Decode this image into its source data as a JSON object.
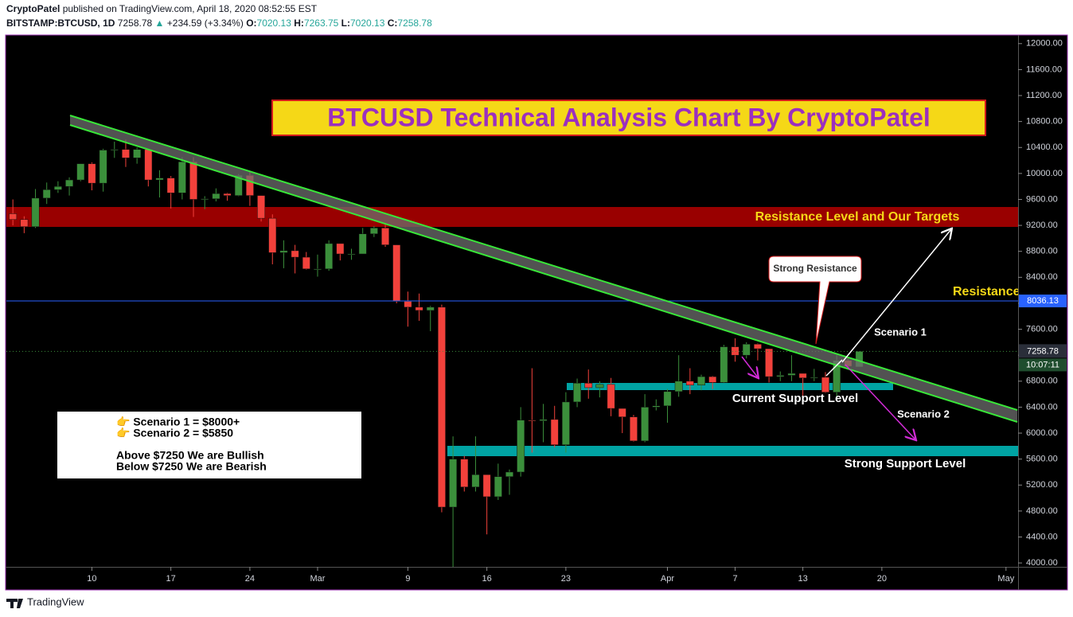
{
  "header": {
    "author": "CryptoPatel",
    "published": "published on TradingView.com, April 18, 2020 08:52:55 EST",
    "symbol": "BITSTAMP:BTCUSD, 1D",
    "last": "7258.78",
    "arrow": "▲",
    "change": "+234.59 (+3.34%)",
    "o_label": "O:",
    "o": "7020.13",
    "h_label": "H:",
    "h": "7263.75",
    "l_label": "L:",
    "l": "7020.13",
    "c_label": "C:",
    "c": "7258.78"
  },
  "footer": {
    "brand": "TradingView"
  },
  "chart_data": {
    "type": "candlestick",
    "x": [
      "2020-02-03",
      "2020-02-04",
      "2020-02-05",
      "2020-02-06",
      "2020-02-07",
      "2020-02-08",
      "2020-02-09",
      "2020-02-10",
      "2020-02-11",
      "2020-02-12",
      "2020-02-13",
      "2020-02-14",
      "2020-02-15",
      "2020-02-16",
      "2020-02-17",
      "2020-02-18",
      "2020-02-19",
      "2020-02-20",
      "2020-02-21",
      "2020-02-22",
      "2020-02-23",
      "2020-02-24",
      "2020-02-25",
      "2020-02-26",
      "2020-02-27",
      "2020-02-28",
      "2020-02-29",
      "2020-03-01",
      "2020-03-02",
      "2020-03-03",
      "2020-03-04",
      "2020-03-05",
      "2020-03-06",
      "2020-03-07",
      "2020-03-08",
      "2020-03-09",
      "2020-03-10",
      "2020-03-11",
      "2020-03-12",
      "2020-03-13",
      "2020-03-14",
      "2020-03-15",
      "2020-03-16",
      "2020-03-17",
      "2020-03-18",
      "2020-03-19",
      "2020-03-20",
      "2020-03-21",
      "2020-03-22",
      "2020-03-23",
      "2020-03-24",
      "2020-03-25",
      "2020-03-26",
      "2020-03-27",
      "2020-03-28",
      "2020-03-29",
      "2020-03-30",
      "2020-03-31",
      "2020-04-01",
      "2020-04-02",
      "2020-04-03",
      "2020-04-04",
      "2020-04-05",
      "2020-04-06",
      "2020-04-07",
      "2020-04-08",
      "2020-04-09",
      "2020-04-10",
      "2020-04-11",
      "2020-04-12",
      "2020-04-13",
      "2020-04-14",
      "2020-04-15",
      "2020-04-16",
      "2020-04-17",
      "2020-04-18"
    ],
    "open": [
      9380,
      9290,
      9180,
      9620,
      9750,
      9800,
      9900,
      10150,
      9850,
      10360,
      10370,
      10240,
      10370,
      9900,
      9930,
      9700,
      10180,
      9600,
      9610,
      9690,
      9660,
      9970,
      9660,
      9310,
      8780,
      8810,
      8710,
      8530,
      8530,
      8920,
      8760,
      8760,
      9070,
      9160,
      8900,
      8030,
      7940,
      7890,
      7940,
      4860,
      5600,
      5170,
      5360,
      5020,
      5330,
      5400,
      6200,
      6190,
      6210,
      5820,
      6480,
      6770,
      6700,
      6750,
      6380,
      6250,
      5880,
      6400,
      6420,
      6640,
      6800,
      6740,
      6870,
      6780,
      7330,
      7200,
      7370,
      7300,
      6870,
      6890,
      6920,
      6850,
      6860,
      6630,
      7120,
      7020.13
    ],
    "high": [
      9600,
      9340,
      9760,
      9860,
      9880,
      9940,
      10150,
      10170,
      10380,
      10490,
      10520,
      10400,
      10380,
      10050,
      9960,
      10250,
      10250,
      9650,
      9770,
      9700,
      9990,
      10030,
      9660,
      9370,
      8970,
      8900,
      8790,
      8750,
      8970,
      8920,
      8840,
      9160,
      9190,
      9210,
      8900,
      8180,
      8150,
      7960,
      7980,
      5950,
      5650,
      5950,
      5360,
      5530,
      5440,
      6400,
      7000,
      6450,
      6420,
      6630,
      6840,
      6980,
      6800,
      6850,
      6380,
      6280,
      6600,
      6520,
      6680,
      7200,
      7000,
      6900,
      6880,
      7360,
      7460,
      7400,
      7380,
      7300,
      6950,
      7200,
      6920,
      6990,
      6940,
      7200,
      7150,
      7263.75
    ],
    "low": [
      9200,
      9080,
      9160,
      9530,
      9700,
      9660,
      9880,
      9740,
      9720,
      10240,
      10100,
      10150,
      9800,
      9630,
      9460,
      9600,
      9330,
      9450,
      9570,
      9580,
      9650,
      9500,
      9260,
      8600,
      8540,
      8460,
      8520,
      8410,
      8500,
      8660,
      8670,
      8760,
      9020,
      8870,
      8000,
      7640,
      7730,
      7570,
      4780,
      3860,
      5100,
      5100,
      4440,
      4970,
      5050,
      5330,
      5700,
      5860,
      5780,
      5700,
      6400,
      6530,
      6550,
      6260,
      6000,
      5870,
      5860,
      6350,
      6160,
      6560,
      6600,
      6660,
      6680,
      6770,
      7100,
      7150,
      7120,
      6780,
      6800,
      6800,
      6560,
      6800,
      6620,
      6560,
      6990,
      7020.13
    ],
    "close": [
      9290,
      9180,
      9620,
      9750,
      9800,
      9900,
      10150,
      9850,
      10360,
      10370,
      10240,
      10370,
      9900,
      9930,
      9700,
      10180,
      9600,
      9610,
      9690,
      9660,
      9970,
      9660,
      9310,
      8780,
      8810,
      8710,
      8530,
      8530,
      8920,
      8760,
      8760,
      9070,
      9160,
      8900,
      8030,
      7940,
      7890,
      7940,
      4860,
      5600,
      5170,
      5360,
      5020,
      5330,
      5400,
      6200,
      6190,
      6210,
      5820,
      6480,
      6770,
      6700,
      6750,
      6380,
      6250,
      5880,
      6400,
      6420,
      6640,
      6800,
      6740,
      6870,
      6780,
      7330,
      7200,
      7370,
      7300,
      6870,
      6890,
      6920,
      6850,
      6860,
      6630,
      7120,
      7030,
      7258.78
    ],
    "up_color": "#3b8f3b",
    "down_color": "#f2413b",
    "xlim": [
      "2020-02-02",
      "2020-05-02"
    ],
    "xticks": [
      {
        "value": "2020-02-10",
        "label": "10"
      },
      {
        "value": "2020-02-17",
        "label": "17"
      },
      {
        "value": "2020-02-24",
        "label": "24"
      },
      {
        "value": "2020-03-01",
        "label": "Mar"
      },
      {
        "value": "2020-03-09",
        "label": "9"
      },
      {
        "value": "2020-03-16",
        "label": "16"
      },
      {
        "value": "2020-03-23",
        "label": "23"
      },
      {
        "value": "2020-04-01",
        "label": "Apr"
      },
      {
        "value": "2020-04-07",
        "label": "7"
      },
      {
        "value": "2020-04-13",
        "label": "13"
      },
      {
        "value": "2020-04-20",
        "label": "20"
      },
      {
        "value": "2020-05-01",
        "label": "May"
      }
    ],
    "ylim": [
      3940,
      12120
    ],
    "yticks": [
      {
        "value": 4000,
        "label": "4000.00"
      },
      {
        "value": 4400,
        "label": "4400.00"
      },
      {
        "value": 4800,
        "label": "4800.00"
      },
      {
        "value": 5200,
        "label": "5200.00"
      },
      {
        "value": 5600,
        "label": "5600.00"
      },
      {
        "value": 6000,
        "label": "6000.00"
      },
      {
        "value": 6400,
        "label": "6400.00"
      },
      {
        "value": 6800,
        "label": "6800.00"
      },
      {
        "value": 7200,
        "label": "7200.00"
      },
      {
        "value": 7600,
        "label": "7600.00"
      },
      {
        "value": 8000,
        "label": "8000.00"
      },
      {
        "value": 8400,
        "label": "8400.00"
      },
      {
        "value": 8800,
        "label": "8800.00"
      },
      {
        "value": 9200,
        "label": "9200.00"
      },
      {
        "value": 9600,
        "label": "9600.00"
      },
      {
        "value": 10000,
        "label": "10000.00"
      },
      {
        "value": 10400,
        "label": "10400.00"
      },
      {
        "value": 10800,
        "label": "10800.00"
      },
      {
        "value": 11200,
        "label": "11200.00"
      },
      {
        "value": 11600,
        "label": "11600.00"
      },
      {
        "value": 12000,
        "label": "12000.00"
      }
    ],
    "price_line": {
      "value": 8036.13,
      "label": "8036.13",
      "color": "#2962ff"
    },
    "last_price": {
      "value": 7258.78,
      "label": "7258.78",
      "countdown": "10:07:11"
    },
    "annotations": {
      "title": "BTCUSD Technical Analysis Chart By CryptoPatel",
      "resistance_targets": "Resistance Level and Our Targets",
      "resistance": "Resistance",
      "strong_resistance": "Strong Resistance",
      "scenario_1": "Scenario 1",
      "scenario_2": "Scenario 2",
      "current_support": "Current Support Level",
      "strong_support": "Strong Support Level",
      "info": [
        "👉 Scenario 1 = $8000+",
        "👉 Scenario 2 = $5850",
        "Above $7250 We are Bullish",
        "Below $7250 We are Bearish"
      ]
    }
  }
}
